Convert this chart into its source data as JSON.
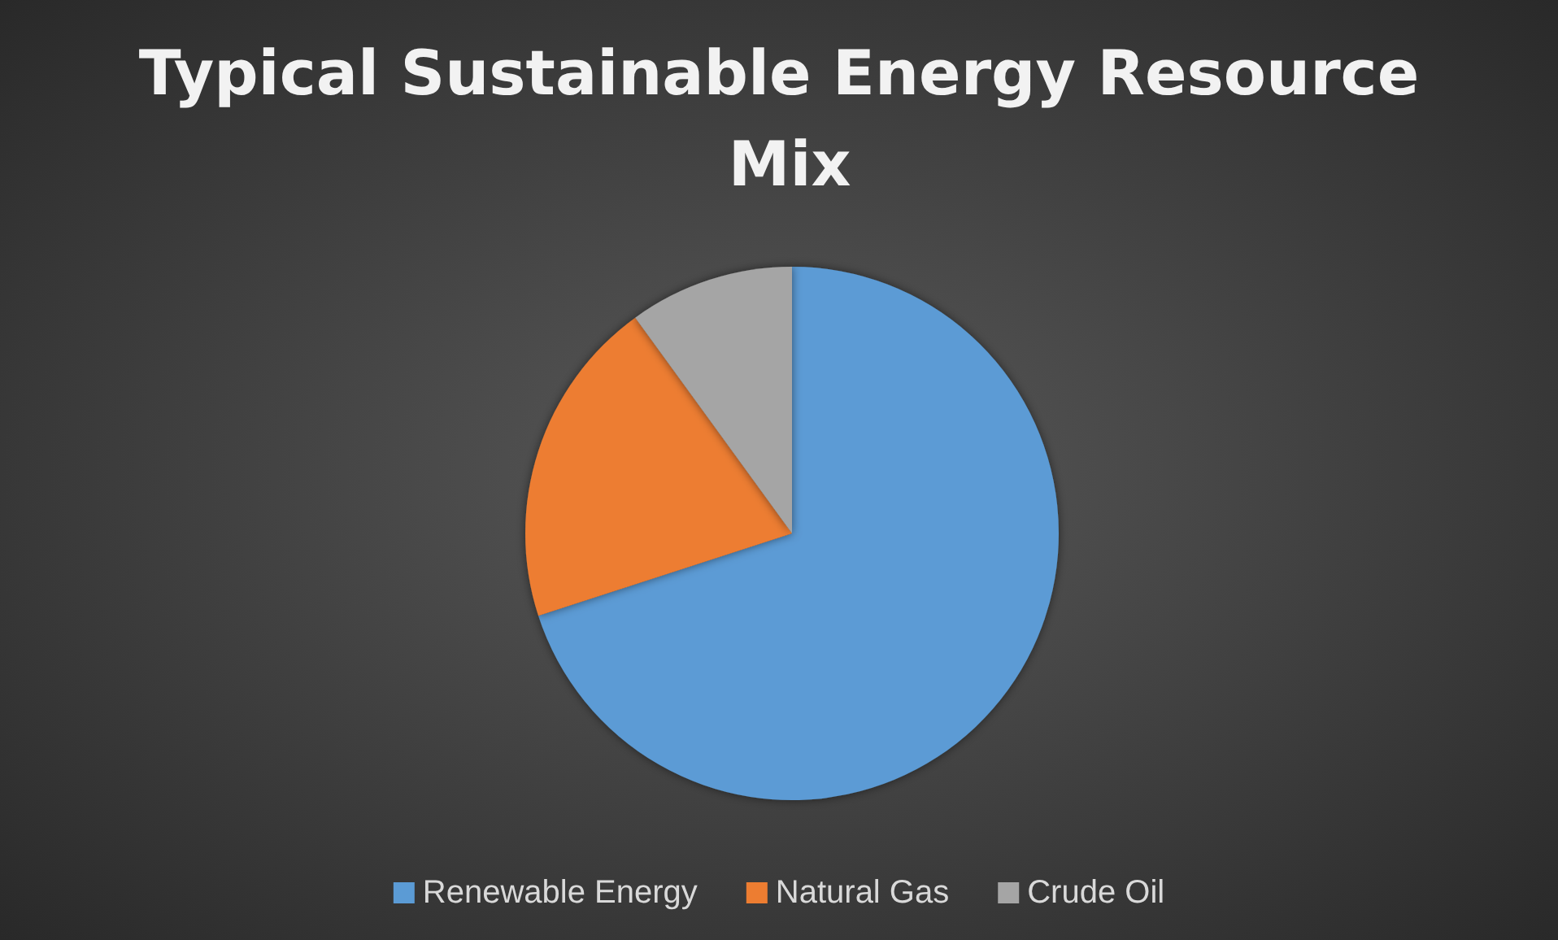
{
  "chart_data": {
    "type": "pie",
    "title": "Typical Sustainable Energy Resource Mix",
    "categories": [
      "Renewable Energy",
      "Natural Gas",
      "Crude Oil"
    ],
    "values": [
      70,
      20,
      10
    ],
    "colors": [
      "#5b9bd5",
      "#ed7d31",
      "#a5a5a5"
    ],
    "legend": "bottom"
  }
}
